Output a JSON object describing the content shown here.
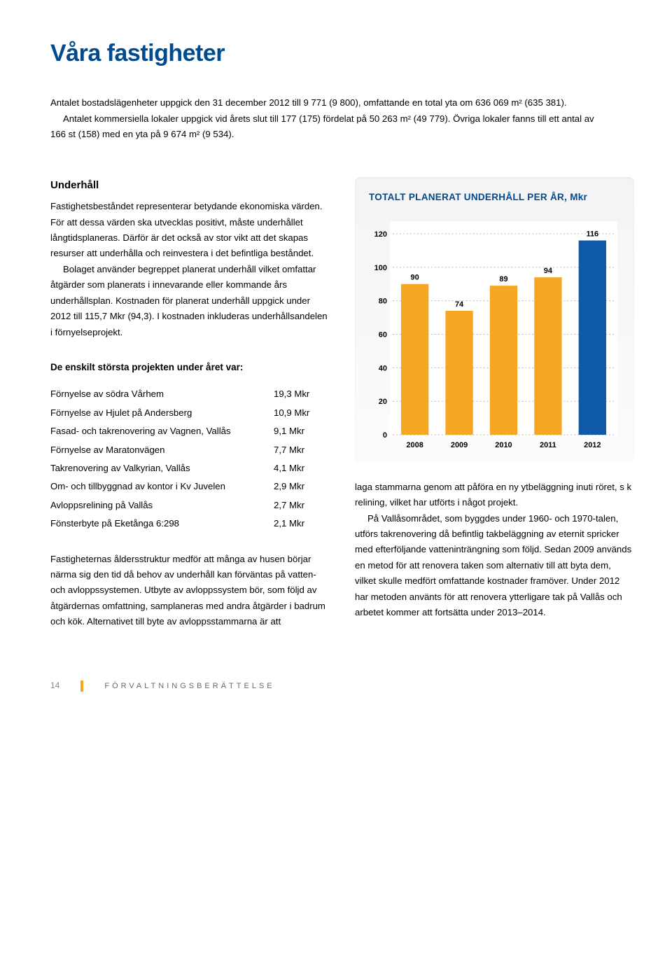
{
  "title": "Våra fastigheter",
  "intro": {
    "p1": "Antalet bostadslägenheter uppgick den 31 december 2012 till 9 771 (9 800), omfattande en total yta om 636 069 m² (635 381).",
    "p2": "Antalet kommersiella lokaler uppgick vid årets slut till 177 (175) fördelat på 50 263 m² (49 779). Övriga lokaler fanns till ett antal av 166 st (158) med en yta på 9 674 m² (9 534)."
  },
  "underhall": {
    "heading": "Underhåll",
    "p1": "Fastighetsbeståndet representerar betydande ekonomiska värden. För att dessa värden ska utvecklas positivt, måste underhållet långtidsplaneras. Därför är det också av stor vikt att det skapas resurser att underhålla och reinvestera i det befintliga beståndet.",
    "p2": "Bolaget använder begreppet planerat underhåll vilket omfattar åtgärder som planerats i innevarande eller kommande års underhållsplan. Kostnaden för planerat underhåll uppgick under 2012 till 115,7 Mkr (94,3). I kostnaden inkluderas underhållsandelen i förnyelseprojekt."
  },
  "projects_heading": "De enskilt största projekten under året var:",
  "projects": [
    {
      "label": "Förnyelse av södra Vårhem",
      "value": "19,3 Mkr"
    },
    {
      "label": "Förnyelse av Hjulet på Andersberg",
      "value": "10,9 Mkr"
    },
    {
      "label": "Fasad- och takrenovering av Vagnen, Vallås",
      "value": "9,1 Mkr"
    },
    {
      "label": "Förnyelse av Maratonvägen",
      "value": "7,7 Mkr"
    },
    {
      "label": "Takrenovering av Valkyrian, Vallås",
      "value": "4,1 Mkr"
    },
    {
      "label": "Om- och tillbyggnad av kontor i Kv Juvelen",
      "value": "2,9 Mkr"
    },
    {
      "label": "Avloppsrelining på Vallås",
      "value": "2,7 Mkr"
    },
    {
      "label": "Fönsterbyte på Eketånga 6:298",
      "value": "2,1 Mkr"
    }
  ],
  "left_tail": "Fastigheternas åldersstruktur medför att många av husen börjar närma sig den tid då behov av underhåll kan förväntas på vatten- och avloppssystemen. Utbyte av avloppssystem bör, som följd av åtgärdernas omfattning, samplaneras med andra åtgärder i badrum och kök. Alternativet till byte av avloppsstammarna är att ",
  "right_tail": {
    "p1": "laga stammarna genom att påföra en ny ytbeläggning inuti röret, s k relining, vilket har utförts i något projekt.",
    "p2": "På Vallåsområdet, som byggdes under 1960- och 1970-talen, utförs takrenovering då befintlig takbeläggning av eternit spricker med efterföljande vatteninträngning som följd. Sedan 2009 används en metod för att renovera taken som alternativ till att byta dem, vilket skulle medfört omfattande kostnader framöver. Under 2012 har metoden använts för att renovera ytterligare tak på Vallås och arbetet kommer att fortsätta under 2013–2014."
  },
  "chart": {
    "title": "TOTALT PLANERAT UNDERHÅLL PER ÅR, Mkr",
    "type": "bar",
    "categories": [
      "2008",
      "2009",
      "2010",
      "2011",
      "2012"
    ],
    "values": [
      90,
      74,
      89,
      94,
      116
    ],
    "bar_colors": [
      "#f5a623",
      "#f5a623",
      "#f5a623",
      "#f5a623",
      "#0f5aa8"
    ],
    "y_ticks": [
      0,
      20,
      40,
      60,
      80,
      100,
      120
    ],
    "ylim": [
      0,
      125
    ],
    "grid_color": "#b8b8b8",
    "label_fontsize": 11,
    "value_fontsize": 11,
    "value_color": "#000000",
    "tick_color": "#000000",
    "bar_width": 0.62,
    "plot_bg": "#ffffff",
    "panel_bg_top": "#f4f4f4",
    "panel_bg_bottom": "#fcfcfc"
  },
  "footer": {
    "page_number": "14",
    "section": "FÖRVALTNINGSBERÄTTELSE"
  }
}
